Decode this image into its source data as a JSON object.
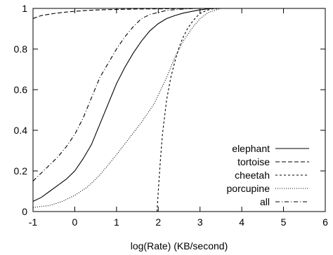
{
  "chart_data": {
    "type": "line",
    "title": "",
    "xlabel": "log(Rate) (KB/second)",
    "ylabel": "",
    "xlim": [
      -1,
      6
    ],
    "ylim": [
      0,
      1
    ],
    "x_ticks": [
      -1,
      0,
      1,
      2,
      3,
      4,
      5,
      6
    ],
    "y_ticks": [
      0,
      0.2,
      0.4,
      0.6,
      0.8,
      1
    ],
    "x_tick_labels": [
      "-1",
      "0",
      "1",
      "2",
      "3",
      "4",
      "5",
      "6"
    ],
    "y_tick_labels": [
      "0",
      "0.2",
      "0.4",
      "0.6",
      "0.8",
      "1"
    ],
    "grid": false,
    "legend_position": "bottom-right",
    "series": [
      {
        "name": "elephant",
        "line_style": "solid",
        "x": [
          -1,
          -0.8,
          -0.6,
          -0.4,
          -0.2,
          0,
          0.2,
          0.4,
          0.6,
          0.8,
          1,
          1.2,
          1.4,
          1.6,
          1.8,
          2,
          2.2,
          2.4,
          2.6,
          2.8,
          3,
          3.2,
          3.4,
          3.6,
          4,
          6
        ],
        "y": [
          0.05,
          0.07,
          0.1,
          0.13,
          0.16,
          0.2,
          0.26,
          0.33,
          0.43,
          0.53,
          0.63,
          0.71,
          0.78,
          0.84,
          0.89,
          0.925,
          0.95,
          0.965,
          0.977,
          0.985,
          0.993,
          0.998,
          1,
          1,
          1,
          1
        ]
      },
      {
        "name": "tortoise",
        "line_style": "dashed",
        "x": [
          -1,
          -0.8,
          -0.5,
          -0.2,
          0,
          0.3,
          0.6,
          1,
          1.5,
          2,
          2.5,
          3,
          3.5,
          4,
          6
        ],
        "y": [
          0.95,
          0.965,
          0.975,
          0.982,
          0.986,
          0.99,
          0.993,
          0.995,
          0.997,
          0.998,
          0.999,
          1,
          1,
          1,
          1
        ]
      },
      {
        "name": "cheetah",
        "line_style": "dotted",
        "x": [
          1.97,
          2.0,
          2.05,
          2.1,
          2.2,
          2.3,
          2.4,
          2.5,
          2.6,
          2.7,
          2.8,
          2.9,
          3.0,
          3.1,
          3.2,
          3.3,
          3.5,
          4,
          6
        ],
        "y": [
          0,
          0.1,
          0.25,
          0.38,
          0.55,
          0.66,
          0.74,
          0.81,
          0.86,
          0.9,
          0.93,
          0.955,
          0.975,
          0.985,
          0.993,
          0.998,
          1,
          1,
          1
        ]
      },
      {
        "name": "porcupine",
        "line_style": "fine-dotted",
        "x": [
          -1,
          -0.6,
          -0.3,
          0,
          0.3,
          0.6,
          1,
          1.3,
          1.6,
          1.9,
          2.2,
          2.4,
          2.6,
          2.8,
          3,
          3.2,
          3.5,
          4,
          6
        ],
        "y": [
          0.02,
          0.03,
          0.05,
          0.08,
          0.12,
          0.18,
          0.28,
          0.36,
          0.44,
          0.53,
          0.66,
          0.76,
          0.84,
          0.9,
          0.95,
          0.98,
          1,
          1,
          1
        ]
      },
      {
        "name": "all",
        "line_style": "dash-dot",
        "x": [
          -1,
          -0.8,
          -0.6,
          -0.4,
          -0.2,
          0,
          0.2,
          0.4,
          0.6,
          0.8,
          1,
          1.2,
          1.4,
          1.6,
          1.8,
          2,
          2.2,
          2.4,
          2.6,
          2.8,
          3,
          3.2,
          4,
          6
        ],
        "y": [
          0.15,
          0.19,
          0.23,
          0.27,
          0.32,
          0.38,
          0.46,
          0.56,
          0.66,
          0.73,
          0.8,
          0.86,
          0.91,
          0.95,
          0.97,
          0.98,
          0.99,
          0.994,
          0.997,
          0.999,
          1,
          1,
          1,
          1
        ]
      }
    ]
  }
}
